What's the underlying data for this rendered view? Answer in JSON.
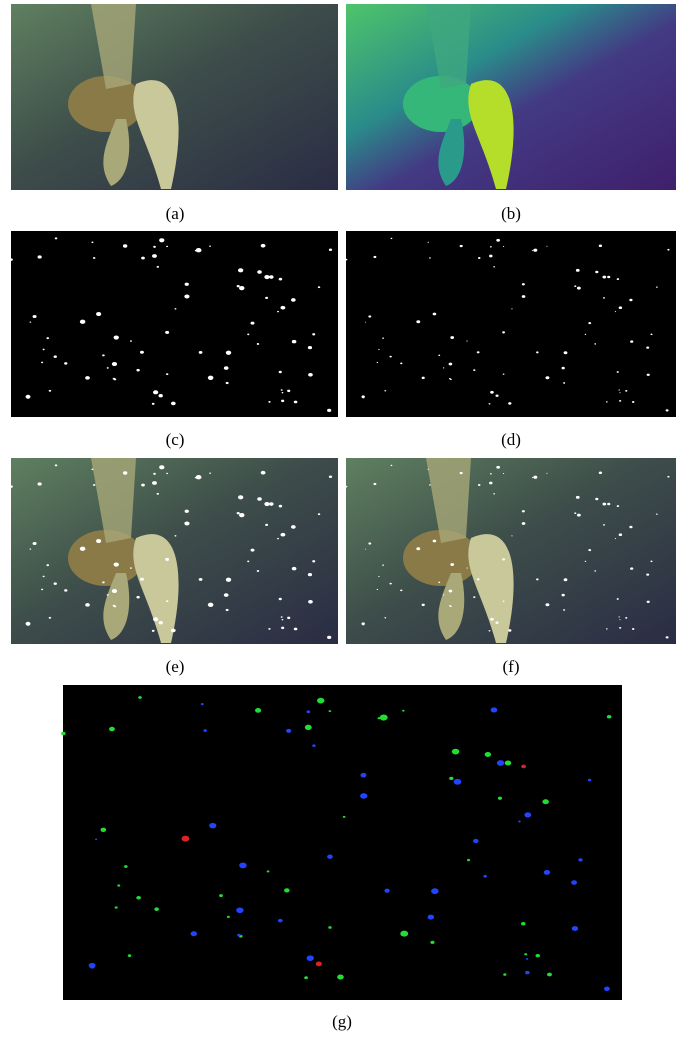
{
  "figure": {
    "labels": [
      "(a)",
      "(b)",
      "(c)",
      "(d)",
      "(e)",
      "(f)",
      "(g)"
    ]
  }
}
